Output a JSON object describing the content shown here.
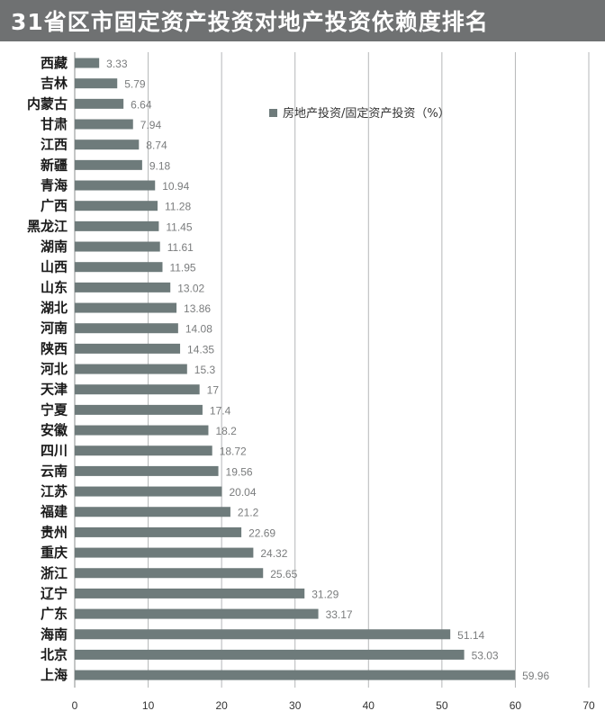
{
  "chart_data": {
    "type": "bar",
    "orientation": "horizontal",
    "title": "31省区市固定资产投资对地产投资依赖度排名",
    "legend": "房地产投资/固定资产投资（%）",
    "legend_position": "top-right",
    "xlim": [
      0,
      70
    ],
    "xticks": [
      0,
      10,
      20,
      30,
      40,
      50,
      60,
      70
    ],
    "grid": true,
    "bar_color": "#6e7b7b",
    "categories": [
      "西藏",
      "吉林",
      "内蒙古",
      "甘肃",
      "江西",
      "新疆",
      "青海",
      "广西",
      "黑龙江",
      "湖南",
      "山西",
      "山东",
      "湖北",
      "河南",
      "陕西",
      "河北",
      "天津",
      "宁夏",
      "安徽",
      "四川",
      "云南",
      "江苏",
      "福建",
      "贵州",
      "重庆",
      "浙江",
      "辽宁",
      "广东",
      "海南",
      "北京",
      "上海"
    ],
    "values": [
      3.33,
      5.79,
      6.64,
      7.94,
      8.74,
      9.18,
      10.94,
      11.28,
      11.45,
      11.61,
      11.95,
      13.02,
      13.86,
      14.08,
      14.35,
      15.3,
      17,
      17.4,
      18.2,
      18.72,
      19.56,
      20.04,
      21.2,
      22.69,
      24.32,
      25.65,
      31.29,
      33.17,
      51.14,
      53.03,
      59.96
    ],
    "value_labels": [
      "3.33",
      "5.79",
      "6.64",
      "7.94",
      "8.74",
      "9.18",
      "10.94",
      "11.28",
      "11.45",
      "11.61",
      "11.95",
      "13.02",
      "13.86",
      "14.08",
      "14.35",
      "15.3",
      "17",
      "17.4",
      "18.2",
      "18.72",
      "19.56",
      "20.04",
      "21.2",
      "22.69",
      "24.32",
      "25.65",
      "31.29",
      "33.17",
      "51.14",
      "53.03",
      "59.96"
    ]
  }
}
